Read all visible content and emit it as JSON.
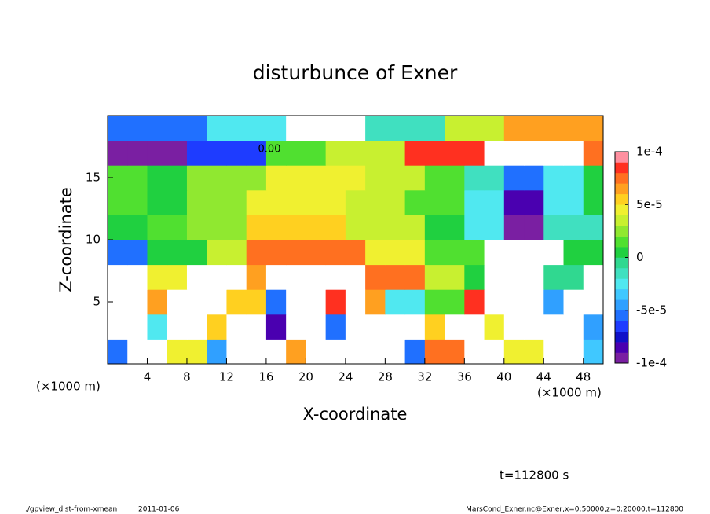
{
  "chart_data": {
    "type": "heatmap",
    "title": "disturbunce of Exner",
    "x_label": "X-coordinate",
    "y_label": "Z-coordinate",
    "x_unit_label": "(×1000 m)",
    "y_unit_label": "(×1000 m)",
    "x": [
      1,
      3,
      5,
      7,
      9,
      11,
      13,
      15,
      17,
      19,
      21,
      23,
      25,
      27,
      29,
      31,
      33,
      35,
      37,
      39,
      41,
      43,
      45,
      47,
      49
    ],
    "z": [
      1,
      3,
      5,
      7,
      9,
      11,
      13,
      15,
      17,
      19
    ],
    "values": [
      [
        -6e-05,
        -0.00012,
        -0.00012,
        4e-05,
        4e-05,
        -5e-05,
        0.00012,
        0.00012,
        -0.00012,
        6e-05,
        0.00012,
        0.00012,
        -0.00012,
        0.00012,
        0.00012,
        -6e-05,
        7e-05,
        7e-05,
        0.00012,
        0.00012,
        4e-05,
        4e-05,
        0.00012,
        0.00012,
        -4e-05
      ],
      [
        -0.00012,
        -0.00012,
        -3e-05,
        0.00012,
        0.00012,
        5e-05,
        0.00012,
        0.00012,
        -8e-05,
        0.00012,
        0.00012,
        -6e-05,
        0.00012,
        0.00012,
        0.00012,
        0.00012,
        5e-05,
        0.00012,
        0.00012,
        4e-05,
        -0.00012,
        -0.00012,
        0.00012,
        0.00012,
        -5e-05
      ],
      [
        -0.00012,
        -0.00012,
        6e-05,
        0.00012,
        0.00012,
        0.00012,
        5e-05,
        5e-05,
        -6e-05,
        0.00012,
        0.00012,
        8e-05,
        0.00012,
        6e-05,
        -3e-05,
        -3e-05,
        1e-05,
        1e-05,
        8e-05,
        -0.00012,
        -0.00012,
        -0.00012,
        -5e-05,
        -0.00012,
        -0.00012
      ],
      [
        -0.00012,
        -0.00012,
        4e-05,
        4e-05,
        0.00012,
        0.00012,
        0.00012,
        6e-05,
        0.00012,
        0.00012,
        0.00012,
        0.00012,
        0.00012,
        7e-05,
        7e-05,
        7e-05,
        3e-05,
        3e-05,
        0,
        -0.00012,
        -0.00012,
        -0.00012,
        -1e-05,
        -1e-05,
        -0.00012
      ],
      [
        -6e-05,
        -6e-05,
        0,
        0,
        0,
        3e-05,
        3e-05,
        7e-05,
        7e-05,
        7e-05,
        7e-05,
        7e-05,
        7e-05,
        4e-05,
        4e-05,
        4e-05,
        1e-05,
        1e-05,
        1e-05,
        -0.00012,
        -0.00012,
        -0.00012,
        -0.00012,
        0,
        0
      ],
      [
        0,
        0,
        1e-05,
        1e-05,
        2e-05,
        2e-05,
        2e-05,
        5e-05,
        5e-05,
        5e-05,
        5e-05,
        5e-05,
        3e-05,
        3e-05,
        3e-05,
        3e-05,
        0,
        0,
        -3e-05,
        -3e-05,
        -9e-05,
        -9e-05,
        -2e-05,
        -2e-05,
        -2e-05
      ],
      [
        1e-05,
        1e-05,
        0,
        0,
        2e-05,
        2e-05,
        2e-05,
        4e-05,
        4e-05,
        4e-05,
        4e-05,
        4e-05,
        3e-05,
        3e-05,
        3e-05,
        1e-05,
        1e-05,
        1e-05,
        -3e-05,
        -3e-05,
        -8e-05,
        -8e-05,
        -3e-05,
        -3e-05,
        0
      ],
      [
        1e-05,
        1e-05,
        0,
        0,
        2e-05,
        2e-05,
        2e-05,
        2e-05,
        4e-05,
        4e-05,
        4e-05,
        4e-05,
        4e-05,
        3e-05,
        3e-05,
        3e-05,
        1e-05,
        1e-05,
        -2e-05,
        -2e-05,
        -6e-05,
        -6e-05,
        -3e-05,
        -3e-05,
        0
      ],
      [
        -9e-05,
        -9e-05,
        -9e-05,
        -9e-05,
        -7e-05,
        -7e-05,
        -7e-05,
        -7e-05,
        1e-05,
        1e-05,
        1e-05,
        3e-05,
        3e-05,
        3e-05,
        3e-05,
        8e-05,
        8e-05,
        8e-05,
        8e-05,
        0.00012,
        0.00012,
        0.00012,
        0.00012,
        0.00012,
        7e-05
      ],
      [
        -6e-05,
        -6e-05,
        -6e-05,
        -6e-05,
        -6e-05,
        -3e-05,
        -3e-05,
        -3e-05,
        -3e-05,
        0.00012,
        0.00012,
        0.00012,
        0.00012,
        -2e-05,
        -2e-05,
        -2e-05,
        -2e-05,
        3e-05,
        3e-05,
        3e-05,
        6e-05,
        6e-05,
        6e-05,
        6e-05,
        6e-05
      ]
    ],
    "xlim": [
      0,
      50
    ],
    "ylim": [
      0,
      20
    ],
    "xticks": [
      4,
      8,
      12,
      16,
      20,
      24,
      28,
      32,
      36,
      40,
      44,
      48
    ],
    "yticks": [
      5,
      10,
      15
    ],
    "colorbar": {
      "clim": [
        -0.0001,
        0.0001
      ],
      "ticks": [
        {
          "value": 0.0001,
          "label": "1e-4"
        },
        {
          "value": 5e-05,
          "label": "5e-5"
        },
        0,
        {
          "value": -5e-05,
          "label": "-5e-5"
        },
        {
          "value": -0.0001,
          "label": "-1e-4"
        }
      ],
      "colors": [
        "#7a1fa2",
        "#4a00b0",
        "#1010c8",
        "#1e3cff",
        "#2070ff",
        "#30a0ff",
        "#40c8ff",
        "#50e8f0",
        "#40e0c0",
        "#30d890",
        "#20d040",
        "#50e030",
        "#90e830",
        "#c8f030",
        "#f0f030",
        "#ffd020",
        "#ffa020",
        "#ff7020",
        "#ff3020",
        "#ff90a0"
      ],
      "out_of_range_color": "#ffffff"
    },
    "contour_label": "0.00",
    "time_label": "t=112800 s"
  },
  "footer": {
    "script": "./gpview_dist-from-xmean",
    "date": "2011-01-06",
    "source": "MarsCond_Exner.nc@Exner,x=0:50000,z=0:20000,t=112800"
  }
}
